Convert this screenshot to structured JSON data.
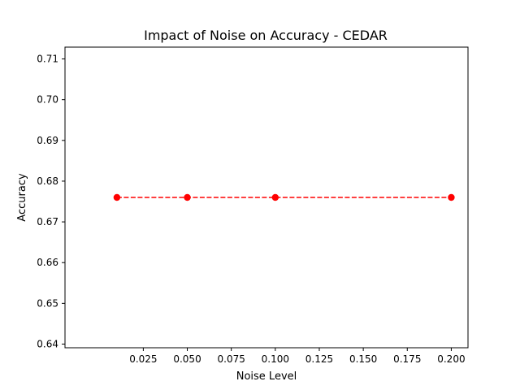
{
  "chart_data": {
    "type": "line",
    "title": "Impact of Noise on Accuracy - CEDAR",
    "xlabel": "Noise Level",
    "ylabel": "Accuracy",
    "xlim": [
      -0.0195,
      0.2095
    ],
    "ylim": [
      0.6391,
      0.7129
    ],
    "x_ticks": [
      0.025,
      0.05,
      0.075,
      0.1,
      0.125,
      0.15,
      0.175,
      0.2
    ],
    "x_tick_labels": [
      "0.025",
      "0.050",
      "0.075",
      "0.100",
      "0.125",
      "0.150",
      "0.175",
      "0.200"
    ],
    "y_ticks": [
      0.64,
      0.65,
      0.66,
      0.67,
      0.68,
      0.69,
      0.7,
      0.71
    ],
    "y_tick_labels": [
      "0.64",
      "0.65",
      "0.66",
      "0.67",
      "0.68",
      "0.69",
      "0.70",
      "0.71"
    ],
    "grid": false,
    "legend": "none",
    "series": [
      {
        "x": [
          0.01,
          0.05,
          0.1,
          0.2
        ],
        "values": [
          0.676,
          0.676,
          0.676,
          0.676
        ],
        "color": "#ff0000",
        "line_style": "dashed",
        "marker": "circle"
      }
    ]
  }
}
